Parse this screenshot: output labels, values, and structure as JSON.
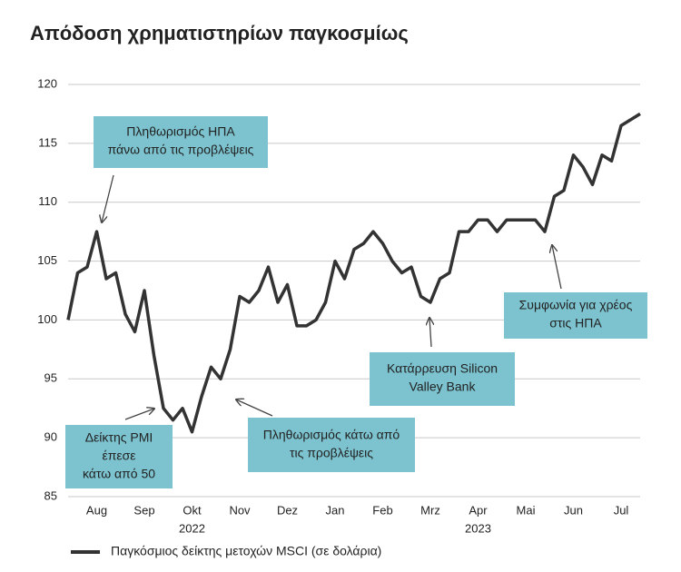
{
  "chart_data": {
    "type": "line",
    "title": "Απόδοση χρηματιστηρίων παγκοσμίως",
    "categories": [
      null,
      null,
      null,
      "Aug",
      null,
      null,
      null,
      null,
      "Sep",
      null,
      null,
      null,
      null,
      "Okt",
      null,
      null,
      null,
      null,
      "Nov",
      null,
      null,
      null,
      null,
      "Dez",
      null,
      null,
      null,
      null,
      "Jan",
      null,
      null,
      null,
      null,
      "Feb",
      null,
      null,
      null,
      null,
      "Mrz",
      null,
      null,
      null,
      null,
      "Apr",
      null,
      null,
      null,
      null,
      "Mai",
      null,
      null,
      null,
      null,
      "Jun",
      null,
      null,
      null,
      null,
      "Jul",
      null,
      null
    ],
    "year_labels": [
      {
        "label": "2022",
        "at": "Okt"
      },
      {
        "label": "2023",
        "at": "Apr"
      }
    ],
    "series": [
      {
        "name": "Παγκόσμιος δείκτης μετοχών MSCI (σε δολάρια)",
        "color": "#333333",
        "values": [
          100,
          104,
          104.5,
          107.5,
          103.5,
          104,
          100.5,
          99,
          102.5,
          97,
          92.5,
          91.5,
          92.5,
          90.5,
          93.5,
          96,
          95,
          97.5,
          102,
          101.5,
          102.5,
          104.5,
          101.5,
          103,
          99.5,
          99.5,
          100,
          101.5,
          105,
          103.5,
          106,
          106.5,
          107.5,
          106.5,
          105,
          104,
          104.5,
          102,
          101.5,
          103.5,
          104,
          107.5,
          107.5,
          108.5,
          108.5,
          107.5,
          108.5,
          108.5,
          108.5,
          108.5,
          107.5,
          110.5,
          111,
          114,
          113,
          111.5,
          114,
          113.5,
          116.5,
          117,
          117.5
        ]
      }
    ],
    "ylim": [
      85,
      120
    ],
    "yticks": [
      85,
      90,
      95,
      100,
      105,
      110,
      115,
      120
    ],
    "grid": true,
    "annotations": [
      {
        "lines": [
          "Πληθωρισμός ΗΠΑ",
          "πάνω από τις προβλέψεις"
        ]
      },
      {
        "lines": [
          "Δείκτης PMI",
          "έπεσε",
          "κάτω από 50"
        ]
      },
      {
        "lines": [
          "Πληθωρισμός κάτω από",
          "τις προβλέψεις"
        ]
      },
      {
        "lines": [
          "Κατάρρευση Silicon",
          "Valley Bank"
        ]
      },
      {
        "lines": [
          "Συμφωνία για χρέος",
          "στις ΗΠΑ"
        ]
      }
    ]
  }
}
